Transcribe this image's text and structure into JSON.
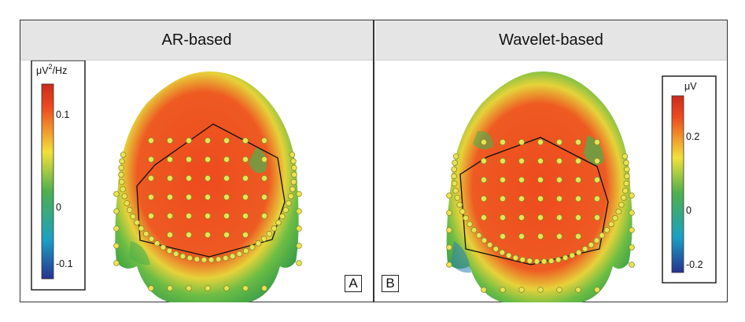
{
  "panels": [
    {
      "title": "AR-based",
      "tag": "A",
      "colorbar": {
        "unit_prefix": "μV",
        "unit_sup": "2",
        "unit_suffix": "/Hz",
        "ticks": [
          "0.1",
          "0",
          "-0.1"
        ]
      }
    },
    {
      "title": "Wavelet-based",
      "tag": "B",
      "colorbar": {
        "unit_prefix": "μV",
        "unit_sup": "",
        "unit_suffix": "",
        "ticks": [
          "0.2",
          "0",
          "-0.2"
        ]
      }
    }
  ],
  "colors": {
    "scale_top": "#cc2a1c",
    "scale_upper": "#ee4a1e",
    "scale_mid_high": "#f2e13a",
    "scale_zero": "#4fb04c",
    "scale_mid_low": "#1aa0c4",
    "scale_bottom": "#27328f",
    "electrode": "#e8e455"
  }
}
